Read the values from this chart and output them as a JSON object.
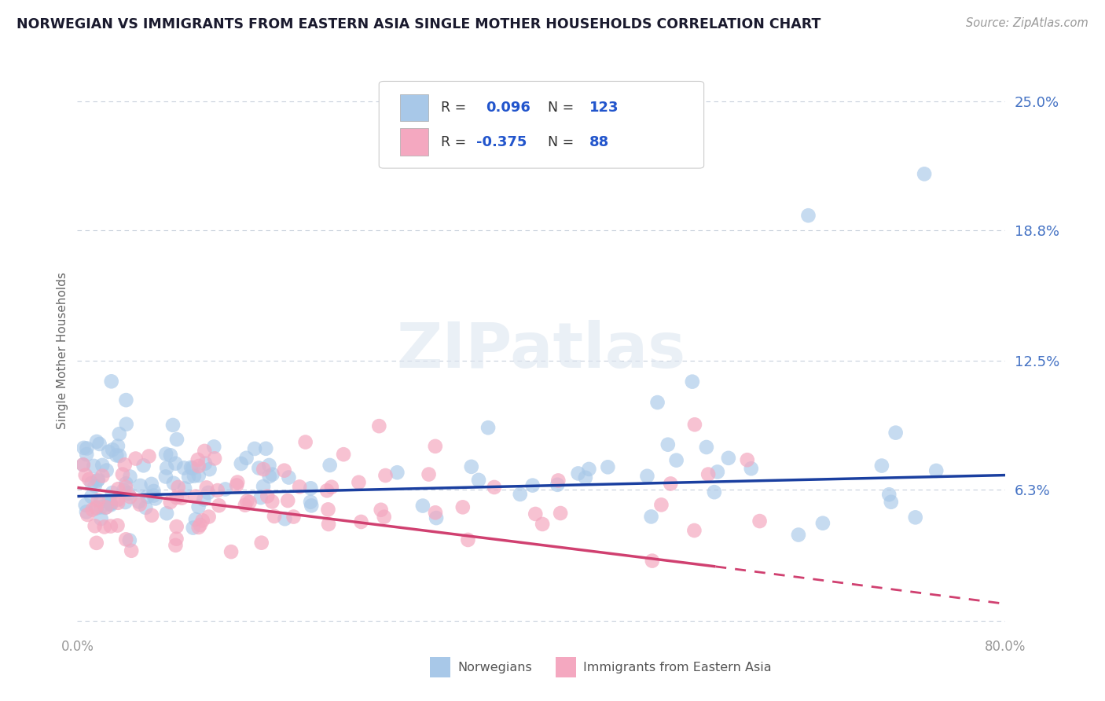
{
  "title": "NORWEGIAN VS IMMIGRANTS FROM EASTERN ASIA SINGLE MOTHER HOUSEHOLDS CORRELATION CHART",
  "source": "Source: ZipAtlas.com",
  "ylabel": "Single Mother Households",
  "xlabel": "",
  "xlim": [
    0.0,
    0.8
  ],
  "ylim": [
    -0.005,
    0.265
  ],
  "ytick_vals": [
    0.0,
    0.063,
    0.125,
    0.188,
    0.25
  ],
  "ytick_labels_right": [
    "6.3%",
    "12.5%",
    "18.8%",
    "25.0%"
  ],
  "ytick_vals_right": [
    0.063,
    0.125,
    0.188,
    0.25
  ],
  "norwegian_R": 0.096,
  "norwegian_N": 123,
  "immigrant_R": -0.375,
  "immigrant_N": 88,
  "blue_scatter_color": "#a8c8e8",
  "pink_scatter_color": "#f4a8c0",
  "trend_blue": "#1a3fa0",
  "trend_pink": "#d04070",
  "grid_color": "#c8d0dc",
  "background_color": "#ffffff",
  "legend_blue_label": "Norwegians",
  "legend_pink_label": "Immigrants from Eastern Asia",
  "nor_trend_x0": 0.0,
  "nor_trend_x1": 0.8,
  "nor_trend_y0": 0.0598,
  "nor_trend_y1": 0.07,
  "imm_trend_x0": 0.0,
  "imm_trend_x1": 0.55,
  "imm_trend_y0": 0.064,
  "imm_trend_y1": 0.026,
  "imm_trend_dash_x0": 0.55,
  "imm_trend_dash_x1": 0.8,
  "imm_trend_dash_y0": 0.026,
  "imm_trend_dash_y1": 0.008
}
